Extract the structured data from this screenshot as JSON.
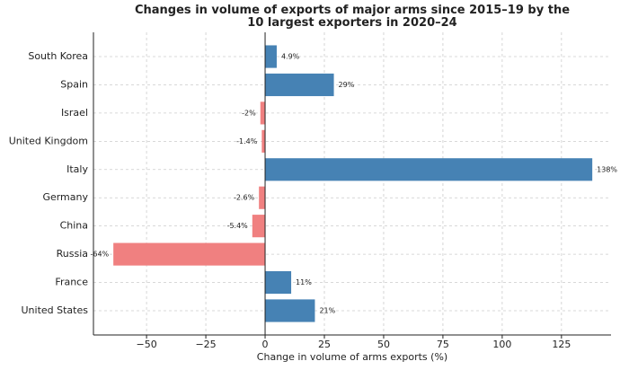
{
  "chart_data": {
    "type": "barh",
    "title": "Changes in volume of exports of major arms since 2015–19 by the\n10 largest exporters in 2020–24",
    "xlabel": "Change in volume of arms exports (%)",
    "categories": [
      "South Korea",
      "Spain",
      "Israel",
      "United Kingdom",
      "Italy",
      "Germany",
      "China",
      "Russia",
      "France",
      "United States"
    ],
    "values": [
      4.9,
      29,
      -2,
      -1.4,
      138,
      -2.6,
      -5.4,
      -64,
      11,
      21
    ],
    "value_labels": [
      "4.9%",
      "29%",
      "-2%",
      "-1.4%",
      "138%",
      "-2.6%",
      "-5.4%",
      "-64%",
      "11%",
      "21%"
    ],
    "positive_color": "#4682b4",
    "negative_color": "#f08080",
    "xlim": [
      -72.4,
      145.9
    ],
    "xticks": [
      {
        "value": -50,
        "label": "−50"
      },
      {
        "value": -25,
        "label": "−25"
      },
      0,
      25,
      50,
      75,
      100,
      125
    ],
    "grid": true
  }
}
